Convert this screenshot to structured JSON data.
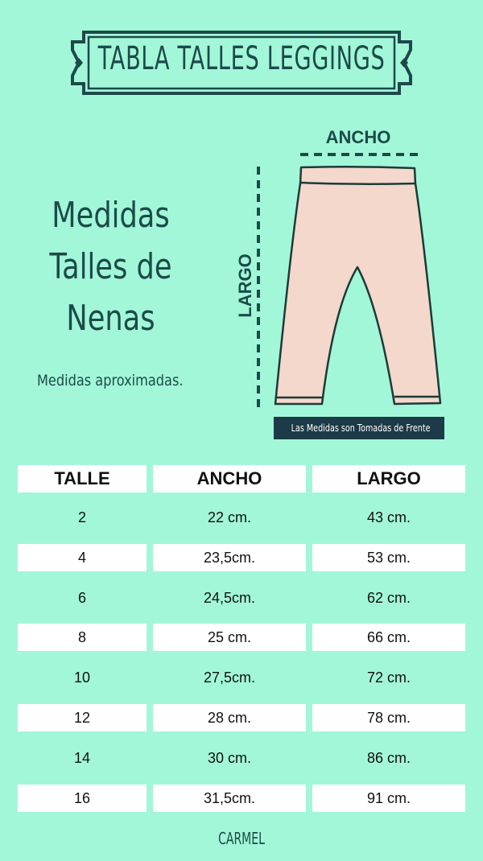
{
  "title": "TABLA TALLES LEGGINGS",
  "heading_lines": [
    "Medidas",
    "Talles de",
    "Nenas"
  ],
  "note": "Medidas aproximadas.",
  "diagram": {
    "width_label": "ANCHO",
    "length_label": "LARGO",
    "caption": "Las Medidas son Tomadas de Frente"
  },
  "colors": {
    "background": "#a2f7d8",
    "dark": "#1c4a4a",
    "garment": "#f3d8cb"
  },
  "table": {
    "headers": [
      "TALLE",
      "ANCHO",
      "LARGO"
    ],
    "rows": [
      [
        "2",
        "22 cm.",
        "43 cm."
      ],
      [
        "4",
        "23,5cm.",
        "53 cm."
      ],
      [
        "6",
        "24,5cm.",
        "62 cm."
      ],
      [
        "8",
        "25 cm.",
        "66 cm."
      ],
      [
        "10",
        "27,5cm.",
        "72 cm."
      ],
      [
        "12",
        "28 cm.",
        "78 cm."
      ],
      [
        "14",
        "30 cm.",
        "86 cm."
      ],
      [
        "16",
        "31,5cm.",
        "91 cm."
      ]
    ]
  },
  "brand": "CARMEL"
}
